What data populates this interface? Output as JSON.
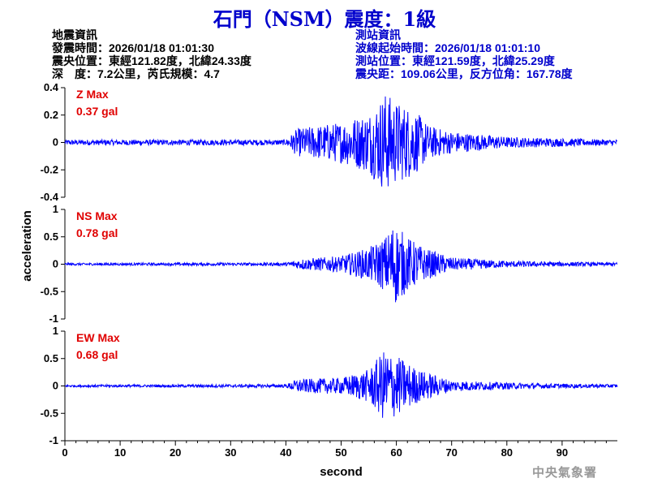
{
  "title": "石門（NSM）震度：1級",
  "quake_info": {
    "heading": "地震資訊",
    "time": "發震時間：2026/01/18 01:01:30",
    "epicenter": "震央位置：東經121.82度，北緯24.33度",
    "depth_magnitude": "深　度：7.2公里，芮氏規模：4.7"
  },
  "station_info": {
    "heading": "測站資訊",
    "wave_start": "波線起始時間：2026/01/18 01:01:10",
    "location": "測站位置：東經121.59度，北緯25.29度",
    "distance": "震央距：109.06公里，反方位角：167.78度"
  },
  "agency": "中央氣象署",
  "colors": {
    "title": "#0000cc",
    "trace": "#0000ff",
    "max_label": "#e00000",
    "station_text": "#0000cc",
    "agency": "#999999"
  },
  "chart_data": [
    {
      "type": "line",
      "component": "Z",
      "max_label": "Z Max",
      "max_value": "0.37 gal",
      "x_range": [
        0,
        100
      ],
      "ylim": [
        -0.4,
        0.4
      ],
      "y_ticks": [
        "0.4",
        "0.2",
        "0",
        "-0.2",
        "-0.4"
      ],
      "envelope": [
        [
          0,
          0.02
        ],
        [
          40,
          0.02
        ],
        [
          42,
          0.1
        ],
        [
          45,
          0.12
        ],
        [
          50,
          0.15
        ],
        [
          55,
          0.22
        ],
        [
          58,
          0.37
        ],
        [
          60,
          0.3
        ],
        [
          63,
          0.25
        ],
        [
          66,
          0.12
        ],
        [
          70,
          0.08
        ],
        [
          80,
          0.04
        ],
        [
          90,
          0.03
        ],
        [
          100,
          0.02
        ]
      ]
    },
    {
      "type": "line",
      "component": "NS",
      "max_label": "NS Max",
      "max_value": "0.78 gal",
      "x_range": [
        0,
        100
      ],
      "ylim": [
        -1,
        1
      ],
      "y_ticks": [
        "1",
        "0.5",
        "0",
        "-0.5",
        "-1"
      ],
      "envelope": [
        [
          0,
          0.02
        ],
        [
          40,
          0.03
        ],
        [
          43,
          0.1
        ],
        [
          50,
          0.15
        ],
        [
          55,
          0.3
        ],
        [
          58,
          0.5
        ],
        [
          59.5,
          0.78
        ],
        [
          62,
          0.5
        ],
        [
          65,
          0.3
        ],
        [
          70,
          0.12
        ],
        [
          80,
          0.06
        ],
        [
          90,
          0.04
        ],
        [
          100,
          0.03
        ]
      ]
    },
    {
      "type": "line",
      "component": "EW",
      "max_label": "EW Max",
      "max_value": "0.68 gal",
      "x_range": [
        0,
        100
      ],
      "ylim": [
        -1,
        1
      ],
      "y_ticks": [
        "1",
        "0.5",
        "0",
        "-0.5",
        "-1"
      ],
      "envelope": [
        [
          0,
          0.02
        ],
        [
          40,
          0.03
        ],
        [
          42,
          0.12
        ],
        [
          50,
          0.15
        ],
        [
          55,
          0.3
        ],
        [
          58,
          0.68
        ],
        [
          61,
          0.5
        ],
        [
          64,
          0.3
        ],
        [
          70,
          0.1
        ],
        [
          80,
          0.06
        ],
        [
          90,
          0.04
        ],
        [
          100,
          0.03
        ]
      ]
    }
  ],
  "x_axis": {
    "label": "second",
    "ticks": [
      "0",
      "10",
      "20",
      "30",
      "40",
      "50",
      "60",
      "70",
      "80",
      "90"
    ]
  },
  "y_axis_label": "acceleration"
}
